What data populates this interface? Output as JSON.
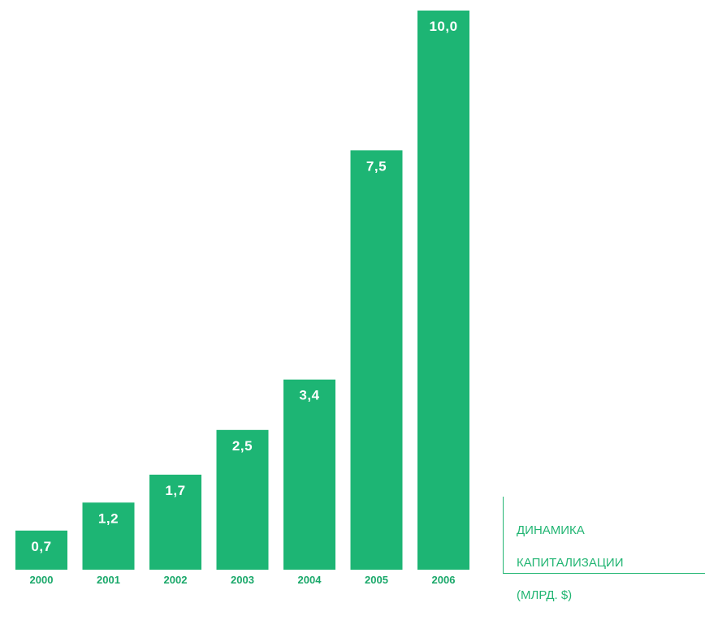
{
  "chart_data": {
    "type": "bar",
    "title_lines": [
      "ДИНАМИКА",
      "КАПИТАЛИЗАЦИИ",
      "(МЛРД. $)"
    ],
    "categories": [
      "2000",
      "2001",
      "2002",
      "2003",
      "2004",
      "2005",
      "2006"
    ],
    "values": [
      0.7,
      1.2,
      1.7,
      2.5,
      3.4,
      7.5,
      10.0
    ],
    "value_labels": [
      "0,7",
      "1,2",
      "1,7",
      "2,5",
      "3,4",
      "7,5",
      "10,0"
    ],
    "ylim": [
      0,
      10.0
    ],
    "grid": false,
    "legend": "none",
    "colors": {
      "bar": "#1db574",
      "bar_label": "#ffffff",
      "tick_label": "#1aa86a",
      "title": "#22b573"
    }
  }
}
